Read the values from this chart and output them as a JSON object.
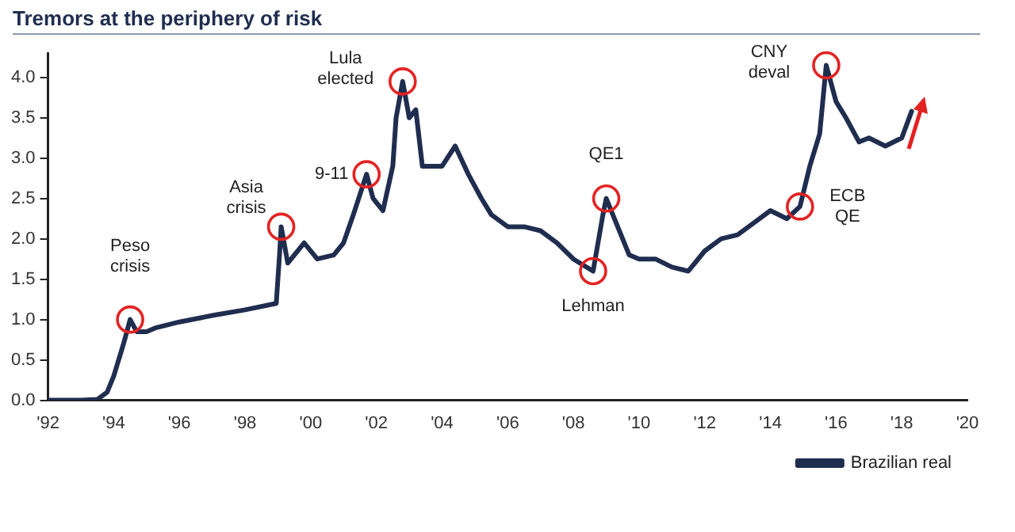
{
  "chart_data": {
    "type": "line",
    "title": "Tremors at the periphery of risk",
    "x": [
      1992,
      1993,
      1993.5,
      1993.8,
      1994.0,
      1994.3,
      1994.5,
      1994.7,
      1995.0,
      1995.3,
      1996,
      1997,
      1998,
      1998.95,
      1999.05,
      1999.1,
      1999.3,
      1999.8,
      2000.2,
      2000.7,
      2001.0,
      2001.3,
      2001.7,
      2001.9,
      2002.2,
      2002.5,
      2002.6,
      2002.8,
      2003.0,
      2003.2,
      2003.4,
      2003.7,
      2004.0,
      2004.4,
      2004.8,
      2005.2,
      2005.5,
      2006.0,
      2006.5,
      2007.0,
      2007.5,
      2008.0,
      2008.6,
      2008.9,
      2009.0,
      2009.3,
      2009.7,
      2010.0,
      2010.5,
      2011.0,
      2011.5,
      2012.0,
      2012.5,
      2013.0,
      2013.5,
      2014.0,
      2014.5,
      2014.9,
      2015.2,
      2015.5,
      2015.7,
      2016.0,
      2016.3,
      2016.7,
      2017.0,
      2017.5,
      2018.0,
      2018.3
    ],
    "series": [
      {
        "name": "Brazilian real",
        "color": "#1f2d4f",
        "values": [
          0,
          0,
          0.01,
          0.1,
          0.3,
          0.7,
          1.0,
          0.85,
          0.85,
          0.9,
          0.97,
          1.05,
          1.12,
          1.2,
          1.8,
          2.15,
          1.7,
          1.95,
          1.75,
          1.8,
          1.95,
          2.3,
          2.8,
          2.5,
          2.35,
          2.9,
          3.5,
          3.95,
          3.5,
          3.6,
          2.9,
          2.9,
          2.9,
          3.15,
          2.8,
          2.5,
          2.3,
          2.15,
          2.15,
          2.1,
          1.95,
          1.75,
          1.6,
          2.3,
          2.5,
          2.2,
          1.8,
          1.75,
          1.75,
          1.65,
          1.6,
          1.85,
          2.0,
          2.05,
          2.2,
          2.35,
          2.25,
          2.4,
          2.9,
          3.3,
          4.15,
          3.7,
          3.5,
          3.2,
          3.25,
          3.15,
          3.25,
          3.58
        ]
      }
    ],
    "xlim": [
      1992,
      2020
    ],
    "xticks": [
      {
        "value": 1992,
        "label": "'92"
      },
      {
        "value": 1994,
        "label": "'94"
      },
      {
        "value": 1996,
        "label": "'96"
      },
      {
        "value": 1998,
        "label": "'98"
      },
      {
        "value": 2000,
        "label": "'00"
      },
      {
        "value": 2002,
        "label": "'02"
      },
      {
        "value": 2004,
        "label": "'04"
      },
      {
        "value": 2006,
        "label": "'06"
      },
      {
        "value": 2008,
        "label": "'08"
      },
      {
        "value": 2010,
        "label": "'10"
      },
      {
        "value": 2012,
        "label": "'12"
      },
      {
        "value": 2014,
        "label": "'14"
      },
      {
        "value": 2016,
        "label": "'16"
      },
      {
        "value": 2018,
        "label": "'18"
      },
      {
        "value": 2020,
        "label": "'20"
      }
    ],
    "ylim": [
      0,
      4.3
    ],
    "yticks": [
      {
        "value": 0,
        "label": "0.0"
      },
      {
        "value": 0.5,
        "label": "0.5"
      },
      {
        "value": 1,
        "label": "1.0"
      },
      {
        "value": 1.5,
        "label": "1.5"
      },
      {
        "value": 2,
        "label": "2.0"
      },
      {
        "value": 2.5,
        "label": "2.5"
      },
      {
        "value": 3,
        "label": "3.0"
      },
      {
        "value": 3.5,
        "label": "3.5"
      },
      {
        "value": 4,
        "label": "4.0"
      }
    ],
    "grid": false,
    "legend": "bottom right",
    "marker": "none",
    "line_style": "solid",
    "annotations": [
      {
        "text": "Peso\ncrisis",
        "x": 1994.5,
        "y": 1.0
      },
      {
        "text": "Asia\ncrisis",
        "x": 1999.1,
        "y": 2.15
      },
      {
        "text": "9-11",
        "x": 2001.7,
        "y": 2.8
      },
      {
        "text": "Lula\nelected",
        "x": 2002.8,
        "y": 3.95
      },
      {
        "text": "Lehman",
        "x": 2008.6,
        "y": 1.6
      },
      {
        "text": "QE1",
        "x": 2009.0,
        "y": 2.5
      },
      {
        "text": "ECB\nQE",
        "x": 2014.9,
        "y": 2.4
      },
      {
        "text": "CNY\ndeval",
        "x": 2015.7,
        "y": 4.15
      }
    ]
  }
}
